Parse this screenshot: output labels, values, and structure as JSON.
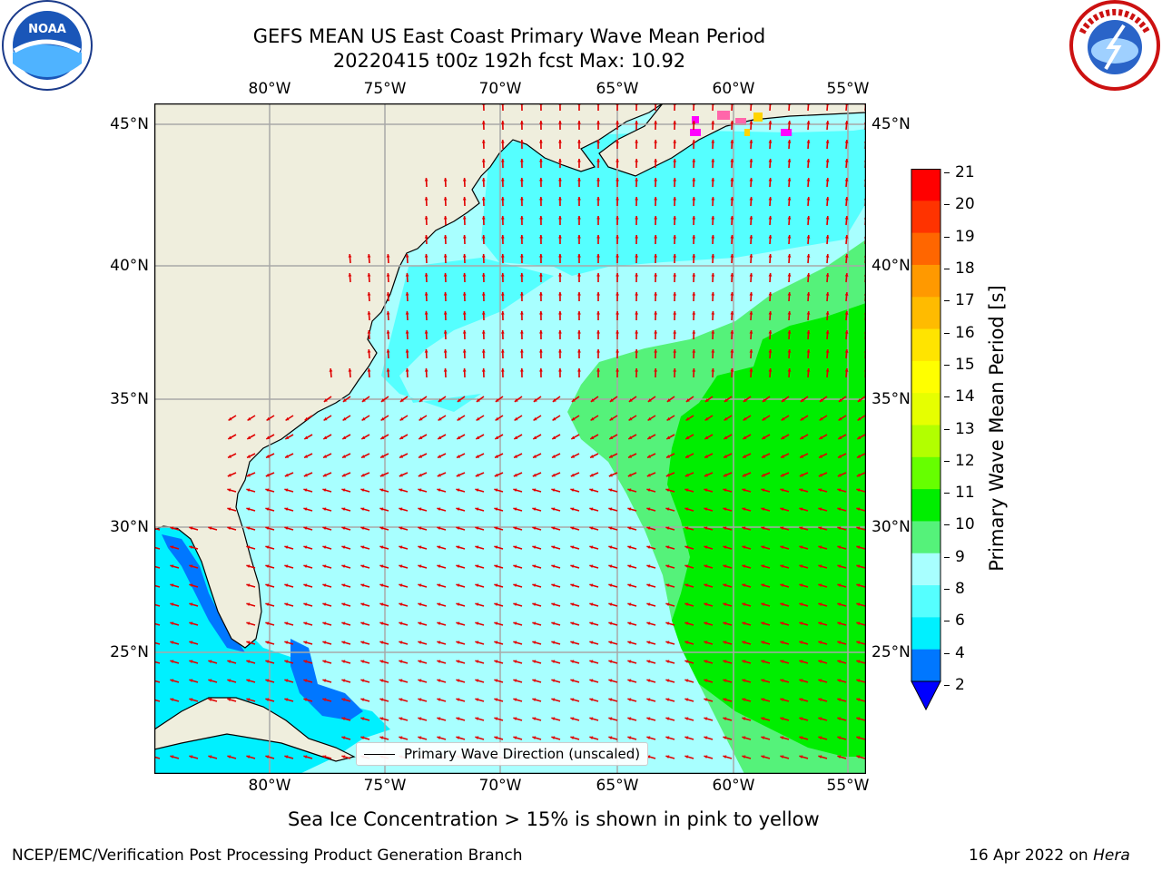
{
  "title_line1": "GEFS MEAN US East Coast Primary Wave Mean Period",
  "title_line2": "20220415 t00z 192h fcst   Max: 10.92",
  "logos": {
    "left": {
      "name": "NOAA",
      "ring_text": "NATIONAL OCEANIC AND ATMOSPHERIC ADMINISTRATION · U.S. DEPARTMENT OF COMMERCE"
    },
    "right": {
      "name": "NATIONAL WEATHER SERVICE"
    }
  },
  "map": {
    "lon_ticks": [
      "80°W",
      "75°W",
      "70°W",
      "65°W",
      "60°W",
      "55°W"
    ],
    "lat_ticks": [
      "45°N",
      "40°N",
      "35°N",
      "30°N",
      "25°N"
    ],
    "lon_range": [
      -85,
      -54
    ],
    "lat_range": [
      20.5,
      46
    ],
    "grid": true,
    "legend_label": "Primary Wave Direction (unscaled)",
    "arrow_color": "#e00000",
    "land_color": "#efeedd",
    "sea_ice_colors": [
      "#ff00ff",
      "#ff66aa",
      "#ffd400"
    ]
  },
  "colorbar": {
    "label": "Primary Wave Mean Period [s]",
    "ticks": [
      "21",
      "20",
      "19",
      "18",
      "17",
      "16",
      "15",
      "14",
      "13",
      "12",
      "11",
      "10",
      "9",
      "8",
      "6",
      "4",
      "2"
    ],
    "colors": [
      "#ff0000",
      "#ff3300",
      "#ff6600",
      "#ff9900",
      "#ffbb00",
      "#ffe400",
      "#ffff00",
      "#e6ff00",
      "#b2ff00",
      "#66ff00",
      "#00ee00",
      "#55f27a",
      "#a8ffff",
      "#55ffff",
      "#00f0ff",
      "#0077ff"
    ],
    "extend_color": "#0000ff"
  },
  "caption": "Sea Ice Concentration > 15% is shown in pink to yellow",
  "footer_left": "NCEP/EMC/Verification Post Processing Product Generation Branch",
  "footer_right_prefix": "16 Apr 2022 on ",
  "footer_right_host": "Hera"
}
